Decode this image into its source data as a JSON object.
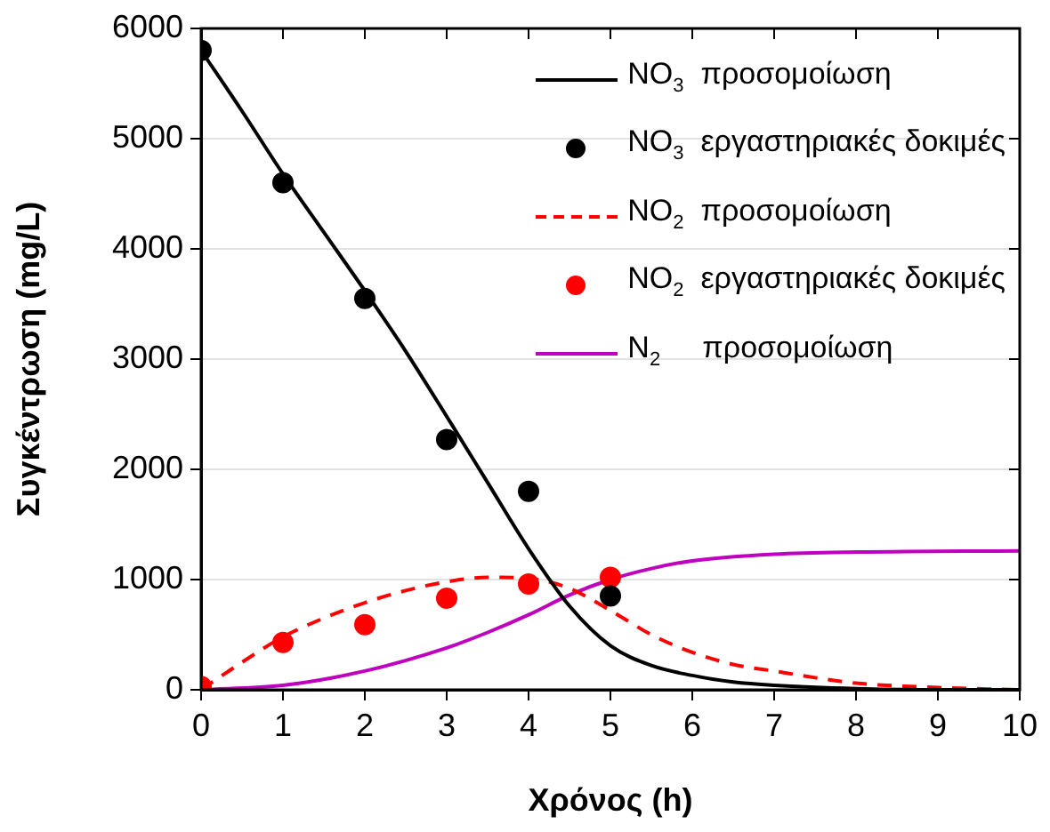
{
  "chart_data": {
    "type": "line",
    "xlabel": "Χρόνος (h)",
    "ylabel": "Συγκέντρωση (mg/L)",
    "xlim": [
      0,
      10
    ],
    "xticks": [
      0,
      1,
      2,
      3,
      4,
      5,
      6,
      7,
      8,
      9,
      10
    ],
    "ylim": [
      0,
      6000
    ],
    "yticks": [
      0,
      1000,
      2000,
      3000,
      4000,
      5000,
      6000
    ],
    "grid": "y",
    "legend": "top right",
    "marker": "none",
    "line_style": "solid",
    "series": [
      {
        "name": "NO$_{3}$  προσομοίωση",
        "color": "#000000",
        "x": [
          0,
          0.5,
          1,
          1.5,
          2,
          2.5,
          3,
          3.5,
          4,
          4.5,
          5,
          5.5,
          6,
          6.5,
          7,
          8,
          9,
          10
        ],
        "values": [
          5800,
          5250,
          4680,
          4150,
          3620,
          3070,
          2480,
          1880,
          1280,
          760,
          400,
          220,
          130,
          70,
          40,
          10,
          0,
          0
        ]
      },
      {
        "name": "NO$_{3}$  εργαστηριακές δοκιμές",
        "type": "scatter",
        "marker": "circle",
        "color": "#000000",
        "x": [
          0,
          1,
          2,
          3,
          4,
          5
        ],
        "values": [
          5800,
          4600,
          3550,
          2270,
          1800,
          850
        ]
      },
      {
        "name": "NO$_{2}$  προσομοίωση",
        "line_style": "dashed",
        "color": "#ff0000",
        "x": [
          0,
          0.5,
          1,
          1.5,
          2,
          2.5,
          3,
          3.5,
          4,
          4.5,
          5,
          5.5,
          6,
          6.5,
          7,
          7.5,
          8,
          9,
          10
        ],
        "values": [
          0,
          250,
          480,
          650,
          790,
          900,
          980,
          1020,
          1010,
          920,
          720,
          500,
          340,
          230,
          170,
          110,
          60,
          20,
          0
        ]
      },
      {
        "name": "NO$_{2}$  εργαστηριακές δοκιμές",
        "type": "scatter",
        "marker": "circle",
        "color": "#ff0000",
        "x": [
          0,
          1,
          2,
          3,
          4,
          5
        ],
        "values": [
          30,
          430,
          590,
          830,
          960,
          1020
        ]
      },
      {
        "name": "N$_{2}$     προσομοίωση",
        "color": "#bf00bf",
        "x": [
          0,
          1,
          2,
          3,
          3.5,
          4,
          4.5,
          5,
          5.5,
          6,
          7,
          8,
          10
        ],
        "values": [
          0,
          40,
          170,
          380,
          520,
          680,
          860,
          1000,
          1100,
          1170,
          1230,
          1250,
          1260
        ]
      }
    ]
  }
}
